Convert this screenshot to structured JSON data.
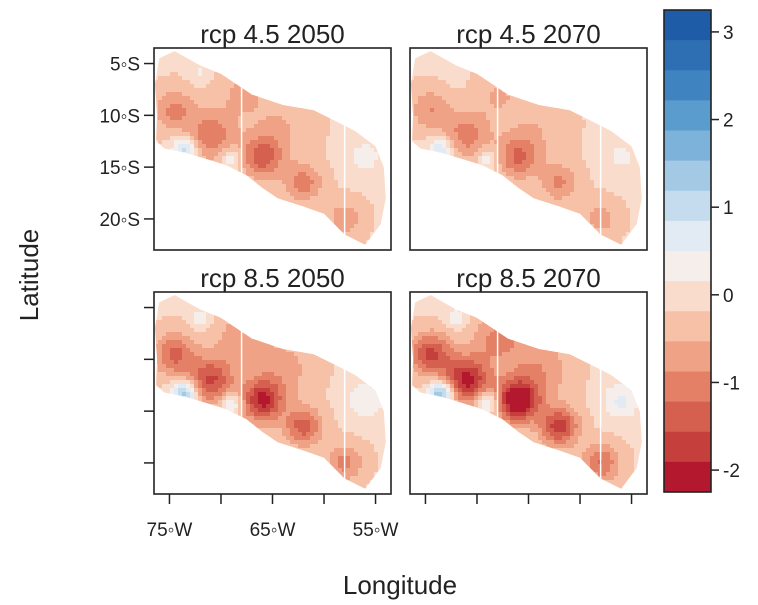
{
  "chart_data": {
    "type": "heatmap",
    "xlabel": "Longitude",
    "ylabel": "Latitude",
    "x_ticks": [
      "75◦W",
      "65◦W",
      "55◦W"
    ],
    "y_ticks": [
      "5◦S",
      "10◦S",
      "15◦S",
      "20◦S"
    ],
    "x_tick_values": [
      -75,
      -65,
      -55
    ],
    "y_tick_values": [
      -5,
      -10,
      -15,
      -20
    ],
    "x_minor_ticks": [
      -75,
      -70,
      -65,
      -60,
      -55
    ],
    "xlim": [
      -76.5,
      -53.5
    ],
    "ylim": [
      -23,
      -3.5
    ],
    "panels": [
      {
        "title": "rcp 4.5 2050",
        "intensity": 0.75
      },
      {
        "title": "rcp 4.5 2070",
        "intensity": 0.65
      },
      {
        "title": "rcp 8.5 2050",
        "intensity": 1.05
      },
      {
        "title": "rcp 8.5 2070",
        "intensity": 1.35
      }
    ],
    "colorbar": {
      "range": [
        -2.25,
        3.25
      ],
      "tick_values": [
        3,
        2,
        1,
        0,
        -1,
        -2
      ],
      "tick_labels": [
        "3",
        "2",
        "1",
        "0",
        "-1",
        "-2"
      ],
      "colors": [
        "#1f5ca7",
        "#2e6fb4",
        "#3f84c0",
        "#5a9cce",
        "#7db2da",
        "#a3c9e5",
        "#c5dcee",
        "#e2ebf3",
        "#f5eeea",
        "#fadccd",
        "#f6c1a6",
        "#efa285",
        "#e48066",
        "#d5604f",
        "#c53f3d",
        "#b3182f"
      ]
    }
  }
}
